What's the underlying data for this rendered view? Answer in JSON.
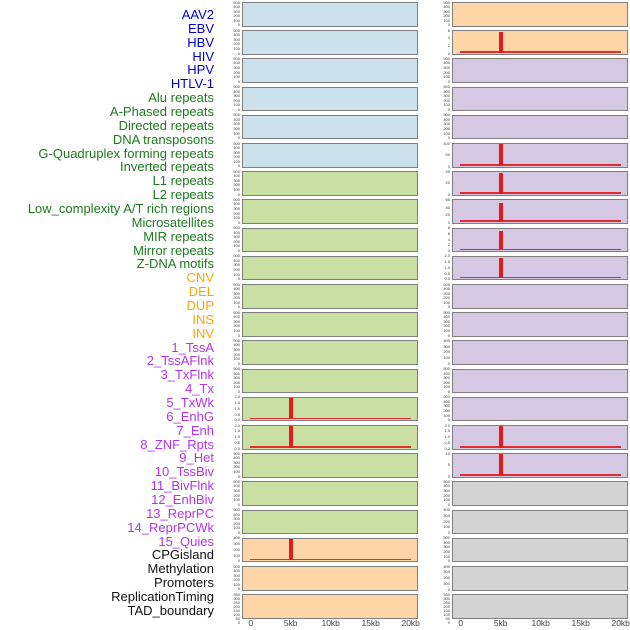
{
  "chart_data": {
    "type": "area",
    "title": "",
    "x_ticks": [
      "0",
      "5kb",
      "10kb",
      "15kb",
      "20kb"
    ],
    "x_range_kb": [
      0,
      20
    ],
    "spike_position_kb": 5,
    "layout": {
      "columns": 2,
      "panels_per_column": 22,
      "grid": false,
      "legend": "none"
    },
    "colors": {
      "label": {
        "virus": "#0000cd",
        "repeat": "#1e7b1e",
        "sv": "#ffa500",
        "chromhmm": "#b633ec",
        "other": "#111111"
      },
      "fill": {
        "virus": "#cde1ec",
        "repeat": "#c9dfa4",
        "sv": "#fdd5a6",
        "chromhmm": "#d4c8e2",
        "other": "#d3d3d3"
      },
      "spike": "#e41a1c",
      "panel_border": "#7f7f7f",
      "tick_text": "#3c3c3c",
      "axis_text": "#444444"
    },
    "tracks": [
      {
        "label": "AAV2",
        "group": "virus",
        "column": "left",
        "y_ticks": [
          "500",
          "400",
          "300",
          "200",
          "100",
          "0"
        ],
        "spike": false
      },
      {
        "label": "EBV",
        "group": "virus",
        "column": "left",
        "y_ticks": [
          "500",
          "400",
          "300",
          "200",
          "100",
          "0"
        ],
        "spike": false
      },
      {
        "label": "HBV",
        "group": "virus",
        "column": "left",
        "y_ticks": [
          "500",
          "400",
          "300",
          "200",
          "100",
          "0"
        ],
        "spike": false
      },
      {
        "label": "HIV",
        "group": "virus",
        "column": "left",
        "y_ticks": [
          "500",
          "400",
          "300",
          "200",
          "100",
          "0"
        ],
        "spike": false
      },
      {
        "label": "HPV",
        "group": "virus",
        "column": "left",
        "y_ticks": [
          "500",
          "400",
          "300",
          "200",
          "100",
          "0"
        ],
        "spike": false
      },
      {
        "label": "HTLV-1",
        "group": "virus",
        "column": "left",
        "y_ticks": [
          "500",
          "400",
          "300",
          "200",
          "100",
          "0"
        ],
        "spike": false
      },
      {
        "label": "Alu repeats",
        "group": "repeat",
        "column": "left",
        "y_ticks": [
          "500",
          "400",
          "300",
          "200",
          "100",
          "0"
        ],
        "spike": false
      },
      {
        "label": "A-Phased repeats",
        "group": "repeat",
        "column": "left",
        "y_ticks": [
          "500",
          "400",
          "300",
          "200",
          "100",
          "0"
        ],
        "spike": false
      },
      {
        "label": "Directed repeats",
        "group": "repeat",
        "column": "left",
        "y_ticks": [
          "500",
          "400",
          "300",
          "200",
          "100",
          "0"
        ],
        "spike": false
      },
      {
        "label": "DNA transposons",
        "group": "repeat",
        "column": "left",
        "y_ticks": [
          "500",
          "400",
          "300",
          "200",
          "100",
          "0"
        ],
        "spike": false
      },
      {
        "label": "G-Quadruplex forming repeats",
        "group": "repeat",
        "column": "left",
        "y_ticks": [
          "500",
          "400",
          "300",
          "200",
          "100",
          "0"
        ],
        "spike": false
      },
      {
        "label": "Inverted repeats",
        "group": "repeat",
        "column": "left",
        "y_ticks": [
          "500",
          "400",
          "300",
          "200",
          "100",
          "0"
        ],
        "spike": false
      },
      {
        "label": "L1 repeats",
        "group": "repeat",
        "column": "left",
        "y_ticks": [
          "500",
          "400",
          "300",
          "200",
          "100",
          "0"
        ],
        "spike": false
      },
      {
        "label": "L2 repeats",
        "group": "repeat",
        "column": "left",
        "y_ticks": [
          "500",
          "400",
          "300",
          "200",
          "100",
          "0"
        ],
        "spike": false
      },
      {
        "label": "Low_complexity A/T rich regions",
        "group": "repeat",
        "column": "left",
        "y_ticks": [
          "2.0",
          "1.5",
          "1.0",
          "0.5",
          "0.0"
        ],
        "spike": 1.0
      },
      {
        "label": "Microsatellites",
        "group": "repeat",
        "column": "left",
        "y_ticks": [
          "2.0",
          "1.5",
          "1.0",
          "0.5",
          "0.0"
        ],
        "spike": 1.0
      },
      {
        "label": "MIR repeats",
        "group": "repeat",
        "column": "left",
        "y_ticks": [
          "500",
          "400",
          "300",
          "200",
          "100",
          "0"
        ],
        "spike": false
      },
      {
        "label": "Mirror repeats",
        "group": "repeat",
        "column": "left",
        "y_ticks": [
          "500",
          "400",
          "300",
          "200",
          "100",
          "0"
        ],
        "spike": false
      },
      {
        "label": "Z-DNA motifs",
        "group": "repeat",
        "column": "left",
        "y_ticks": [
          "500",
          "400",
          "300",
          "200",
          "100",
          "0"
        ],
        "spike": false
      },
      {
        "label": "CNV",
        "group": "sv",
        "column": "left",
        "y_ticks": [
          "400",
          "300",
          "200",
          "100",
          "0"
        ],
        "spike": 1.0
      },
      {
        "label": "DEL",
        "group": "sv",
        "column": "left",
        "y_ticks": [
          "500",
          "400",
          "300",
          "200",
          "100",
          "0"
        ],
        "spike": false
      },
      {
        "label": "DUP",
        "group": "sv",
        "column": "left",
        "y_ticks": [
          "350",
          "300",
          "250",
          "200",
          "150",
          "100",
          "50",
          "0"
        ],
        "spike": false
      },
      {
        "label": "INS",
        "group": "sv",
        "column": "right",
        "y_ticks": [
          "500",
          "400",
          "300",
          "200",
          "100",
          "0"
        ],
        "spike": false
      },
      {
        "label": "INV",
        "group": "sv",
        "column": "right",
        "y_ticks": [
          "6",
          "4",
          "2",
          "0"
        ],
        "spike": 0.95
      },
      {
        "label": "1_TssA",
        "group": "chromhmm",
        "column": "right",
        "y_ticks": [
          "500",
          "400",
          "300",
          "200",
          "100",
          "0"
        ],
        "spike": false
      },
      {
        "label": "2_TssAFlnk",
        "group": "chromhmm",
        "column": "right",
        "y_ticks": [
          "500",
          "400",
          "300",
          "200",
          "100",
          "0"
        ],
        "spike": false
      },
      {
        "label": "3_TxFlnk",
        "group": "chromhmm",
        "column": "right",
        "y_ticks": [
          "500",
          "400",
          "300",
          "200",
          "100",
          "0"
        ],
        "spike": false
      },
      {
        "label": "4_Tx",
        "group": "chromhmm",
        "column": "right",
        "y_ticks": [
          "100",
          "50",
          "0"
        ],
        "spike": 1.0
      },
      {
        "label": "5_TxWk",
        "group": "chromhmm",
        "column": "right",
        "y_ticks": [
          "40",
          "20",
          "0"
        ],
        "spike": 0.95
      },
      {
        "label": "6_EnhG",
        "group": "chromhmm",
        "column": "right",
        "y_ticks": [
          "60",
          "40",
          "20",
          "0"
        ],
        "spike": 0.88
      },
      {
        "label": "7_Enh",
        "group": "chromhmm",
        "column": "right",
        "y_ticks": [
          "8",
          "6",
          "4",
          "2",
          "0"
        ],
        "spike": 0.88
      },
      {
        "label": "8_ZNF_Rpts",
        "group": "chromhmm",
        "column": "right",
        "y_ticks": [
          "2.0",
          "1.5",
          "1.0",
          "0.5",
          "0.0"
        ],
        "spike": 0.95
      },
      {
        "label": "9_Het",
        "group": "chromhmm",
        "column": "right",
        "y_ticks": [
          "500",
          "400",
          "300",
          "200",
          "100",
          "0"
        ],
        "spike": false
      },
      {
        "label": "10_TssBiv",
        "group": "chromhmm",
        "column": "right",
        "y_ticks": [
          "500",
          "400",
          "300",
          "200",
          "100",
          "0"
        ],
        "spike": false
      },
      {
        "label": "11_BivFlnk",
        "group": "chromhmm",
        "column": "right",
        "y_ticks": [
          "400",
          "300",
          "200",
          "100",
          "0"
        ],
        "spike": false
      },
      {
        "label": "12_EnhBiv",
        "group": "chromhmm",
        "column": "right",
        "y_ticks": [
          "500",
          "400",
          "300",
          "200",
          "100",
          "0"
        ],
        "spike": false
      },
      {
        "label": "13_ReprPC",
        "group": "chromhmm",
        "column": "right",
        "y_ticks": [
          "500",
          "400",
          "300",
          "200",
          "100",
          "0"
        ],
        "spike": false
      },
      {
        "label": "14_ReprPCWk",
        "group": "chromhmm",
        "column": "right",
        "y_ticks": [
          "2.0",
          "1.5",
          "1.0",
          "0.5",
          "0.0"
        ],
        "spike": 1.0
      },
      {
        "label": "15_Quies",
        "group": "chromhmm",
        "column": "right",
        "y_ticks": [
          "10",
          "5",
          "0"
        ],
        "spike": 1.0
      },
      {
        "label": "CPGisland",
        "group": "other",
        "column": "right",
        "y_ticks": [
          "500",
          "400",
          "300",
          "200",
          "100",
          "0"
        ],
        "spike": false
      },
      {
        "label": "Methylation",
        "group": "other",
        "column": "right",
        "y_ticks": [
          "400",
          "300",
          "200",
          "100",
          "0"
        ],
        "spike": false
      },
      {
        "label": "Promoters",
        "group": "other",
        "column": "right",
        "y_ticks": [
          "500",
          "400",
          "300",
          "200",
          "100",
          "0"
        ],
        "spike": false
      },
      {
        "label": "ReplicationTiming",
        "group": "other",
        "column": "right",
        "y_ticks": [
          "400",
          "300",
          "200",
          "100",
          "0"
        ],
        "spike": false
      },
      {
        "label": "TAD_boundary",
        "group": "other",
        "column": "right",
        "y_ticks": [
          "350",
          "300",
          "250",
          "200",
          "150",
          "100",
          "50",
          "0"
        ],
        "spike": false
      }
    ]
  }
}
